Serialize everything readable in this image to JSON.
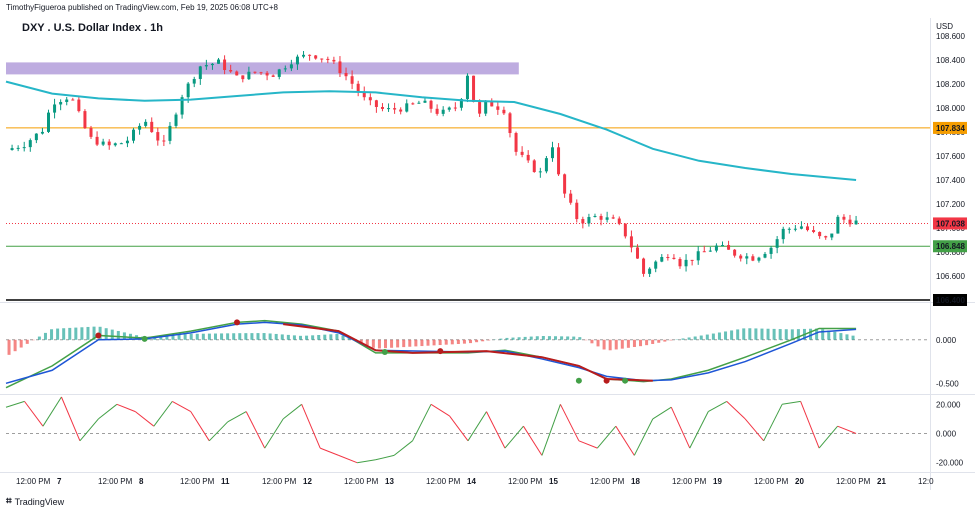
{
  "header": {
    "published": "TimothyFigueroa published on TradingView.com, Feb 19, 2025 06:08 UTC+8",
    "title": "DXY . U.S. Dollar Index . 1h",
    "currency": "USD"
  },
  "footer": {
    "logo_text": "TradingView"
  },
  "chart_data": [
    {
      "type": "candlestick",
      "title": "DXY . U.S. Dollar Index . 1h",
      "ylim": [
        106.4,
        108.65
      ],
      "y_ticks": [
        "106.600",
        "106.800",
        "107.000",
        "107.200",
        "107.400",
        "107.600",
        "107.800",
        "108.000",
        "108.200",
        "108.400",
        "108.600"
      ],
      "price_tags": [
        {
          "value": 107.834,
          "label": "107.834",
          "color": "#f59d00"
        },
        {
          "value": 107.038,
          "label": "107.038",
          "color": "#f23645"
        },
        {
          "value": 106.848,
          "label": "106.848",
          "color": "#43a047"
        },
        {
          "value": 106.4,
          "label": "106.400",
          "color": "#000000"
        }
      ],
      "horizontal_lines": [
        {
          "value": 107.834,
          "color": "#f59d00"
        },
        {
          "value": 107.038,
          "color": "#f23645",
          "style": "dotted"
        },
        {
          "value": 106.848,
          "color": "#43a047"
        },
        {
          "value": 106.4,
          "color": "#000000"
        }
      ],
      "zone": {
        "y_range": [
          108.28,
          108.38
        ],
        "x_range": [
          0,
          0.555
        ],
        "color": "#b39ddb"
      },
      "close_path": [
        [
          0.0,
          107.65
        ],
        [
          0.02,
          107.7
        ],
        [
          0.04,
          107.82
        ],
        [
          0.05,
          108.05
        ],
        [
          0.07,
          108.1
        ],
        [
          0.09,
          107.75
        ],
        [
          0.11,
          107.68
        ],
        [
          0.13,
          107.72
        ],
        [
          0.15,
          107.9
        ],
        [
          0.17,
          107.68
        ],
        [
          0.19,
          108.1
        ],
        [
          0.21,
          108.35
        ],
        [
          0.23,
          108.38
        ],
        [
          0.25,
          108.25
        ],
        [
          0.27,
          108.3
        ],
        [
          0.29,
          108.28
        ],
        [
          0.31,
          108.4
        ],
        [
          0.33,
          108.45
        ],
        [
          0.35,
          108.4
        ],
        [
          0.37,
          108.25
        ],
        [
          0.39,
          108.05
        ],
        [
          0.41,
          107.98
        ],
        [
          0.43,
          108.0
        ],
        [
          0.45,
          108.05
        ],
        [
          0.47,
          107.95
        ],
        [
          0.49,
          108.02
        ],
        [
          0.5,
          108.3
        ],
        [
          0.51,
          107.9
        ],
        [
          0.52,
          108.05
        ],
        [
          0.54,
          107.98
        ],
        [
          0.55,
          107.65
        ],
        [
          0.57,
          107.5
        ],
        [
          0.58,
          107.45
        ],
        [
          0.59,
          107.75
        ],
        [
          0.6,
          107.35
        ],
        [
          0.61,
          107.2
        ],
        [
          0.62,
          107.05
        ],
        [
          0.64,
          107.1
        ],
        [
          0.66,
          107.05
        ],
        [
          0.67,
          106.95
        ],
        [
          0.68,
          106.8
        ],
        [
          0.69,
          106.62
        ],
        [
          0.7,
          106.7
        ],
        [
          0.72,
          106.8
        ],
        [
          0.73,
          106.7
        ],
        [
          0.75,
          106.78
        ],
        [
          0.77,
          106.85
        ],
        [
          0.79,
          106.78
        ],
        [
          0.81,
          106.75
        ],
        [
          0.83,
          106.85
        ],
        [
          0.84,
          106.98
        ],
        [
          0.86,
          107.02
        ],
        [
          0.88,
          106.92
        ],
        [
          0.89,
          106.9
        ],
        [
          0.9,
          107.08
        ],
        [
          0.92,
          107.05
        ]
      ],
      "moving_average": [
        [
          0.0,
          108.22
        ],
        [
          0.05,
          108.12
        ],
        [
          0.1,
          108.08
        ],
        [
          0.15,
          108.06
        ],
        [
          0.2,
          108.07
        ],
        [
          0.25,
          108.1
        ],
        [
          0.3,
          108.13
        ],
        [
          0.35,
          108.14
        ],
        [
          0.4,
          108.13
        ],
        [
          0.45,
          108.09
        ],
        [
          0.5,
          108.06
        ],
        [
          0.55,
          108.05
        ],
        [
          0.6,
          107.95
        ],
        [
          0.65,
          107.82
        ],
        [
          0.7,
          107.66
        ],
        [
          0.75,
          107.56
        ],
        [
          0.8,
          107.5
        ],
        [
          0.85,
          107.45
        ],
        [
          0.92,
          107.4
        ]
      ],
      "ma_color": "#26b6c8"
    },
    {
      "type": "line",
      "ylim": [
        -0.6,
        0.4
      ],
      "y_ticks": [
        "0.000",
        "-0.500"
      ],
      "series": [
        {
          "color": "#43a047",
          "values": [
            [
              0,
              -0.55
            ],
            [
              0.05,
              -0.3
            ],
            [
              0.1,
              0.05
            ],
            [
              0.15,
              0.02
            ],
            [
              0.2,
              0.1
            ],
            [
              0.25,
              0.2
            ],
            [
              0.28,
              0.22
            ],
            [
              0.32,
              0.18
            ],
            [
              0.36,
              0.1
            ],
            [
              0.4,
              -0.15
            ],
            [
              0.45,
              -0.15
            ],
            [
              0.5,
              -0.15
            ],
            [
              0.54,
              -0.12
            ],
            [
              0.58,
              -0.2
            ],
            [
              0.62,
              -0.3
            ],
            [
              0.65,
              -0.45
            ],
            [
              0.69,
              -0.48
            ],
            [
              0.72,
              -0.45
            ],
            [
              0.76,
              -0.35
            ],
            [
              0.8,
              -0.2
            ],
            [
              0.85,
              0.0
            ],
            [
              0.88,
              0.13
            ],
            [
              0.92,
              0.13
            ]
          ]
        },
        {
          "color": "#1e56d6",
          "values": [
            [
              0,
              -0.5
            ],
            [
              0.05,
              -0.35
            ],
            [
              0.1,
              0.0
            ],
            [
              0.15,
              0.01
            ],
            [
              0.2,
              0.08
            ],
            [
              0.25,
              0.18
            ],
            [
              0.28,
              0.2
            ],
            [
              0.32,
              0.17
            ],
            [
              0.36,
              0.08
            ],
            [
              0.4,
              -0.12
            ],
            [
              0.45,
              -0.13
            ],
            [
              0.5,
              -0.14
            ],
            [
              0.54,
              -0.13
            ],
            [
              0.58,
              -0.22
            ],
            [
              0.62,
              -0.32
            ],
            [
              0.65,
              -0.42
            ],
            [
              0.69,
              -0.47
            ],
            [
              0.72,
              -0.46
            ],
            [
              0.76,
              -0.38
            ],
            [
              0.8,
              -0.25
            ],
            [
              0.85,
              -0.04
            ],
            [
              0.88,
              0.09
            ],
            [
              0.92,
              0.12
            ]
          ]
        },
        {
          "color": "#b71c1c",
          "values": [
            [
              0.3,
              0.18
            ],
            [
              0.36,
              0.1
            ],
            [
              0.4,
              -0.12
            ],
            [
              0.44,
              -0.15
            ],
            [
              0.52,
              -0.13
            ],
            [
              0.58,
              -0.2
            ],
            [
              0.62,
              -0.3
            ],
            [
              0.65,
              -0.45
            ],
            [
              0.7,
              -0.47
            ]
          ]
        }
      ],
      "histogram_color_pos": "#26a69a",
      "histogram_color_neg": "#ef5350"
    },
    {
      "type": "line",
      "ylim": [
        -25,
        25
      ],
      "y_ticks": [
        "20.000",
        "0.000",
        "-20.000"
      ],
      "series": [
        {
          "color": "#43a047",
          "values": [
            [
              0,
              18
            ],
            [
              0.02,
              22
            ],
            [
              0.04,
              5
            ],
            [
              0.06,
              25
            ],
            [
              0.08,
              -5
            ],
            [
              0.1,
              10
            ],
            [
              0.12,
              20
            ],
            [
              0.14,
              15
            ],
            [
              0.16,
              5
            ],
            [
              0.18,
              22
            ],
            [
              0.2,
              15
            ],
            [
              0.22,
              -5
            ],
            [
              0.24,
              8
            ],
            [
              0.26,
              15
            ],
            [
              0.28,
              -10
            ],
            [
              0.3,
              10
            ],
            [
              0.32,
              20
            ],
            [
              0.34,
              -10
            ],
            [
              0.36,
              -15
            ],
            [
              0.38,
              -20
            ],
            [
              0.4,
              -18
            ],
            [
              0.42,
              -15
            ],
            [
              0.44,
              -5
            ],
            [
              0.46,
              20
            ],
            [
              0.48,
              12
            ],
            [
              0.5,
              -5
            ],
            [
              0.52,
              15
            ],
            [
              0.54,
              -10
            ],
            [
              0.56,
              5
            ],
            [
              0.58,
              -15
            ],
            [
              0.6,
              20
            ],
            [
              0.62,
              -5
            ],
            [
              0.64,
              -10
            ],
            [
              0.66,
              5
            ],
            [
              0.68,
              -15
            ],
            [
              0.7,
              10
            ],
            [
              0.72,
              18
            ],
            [
              0.74,
              -10
            ],
            [
              0.76,
              15
            ],
            [
              0.78,
              22
            ],
            [
              0.8,
              10
            ],
            [
              0.82,
              -5
            ],
            [
              0.84,
              20
            ],
            [
              0.86,
              22
            ],
            [
              0.88,
              -10
            ],
            [
              0.9,
              5
            ],
            [
              0.92,
              0
            ]
          ]
        }
      ]
    }
  ],
  "x_axis_labels": [
    "12:00 PM",
    "7",
    "12:00 PM",
    "8",
    "12:00 PM",
    "11",
    "12:00 PM",
    "12",
    "12:00 PM",
    "13",
    "12:00 PM",
    "14",
    "12:00 PM",
    "15",
    "12:00 PM",
    "18",
    "12:00 PM",
    "19",
    "12:00 PM",
    "20",
    "12:00 PM",
    "21",
    "12:0"
  ]
}
